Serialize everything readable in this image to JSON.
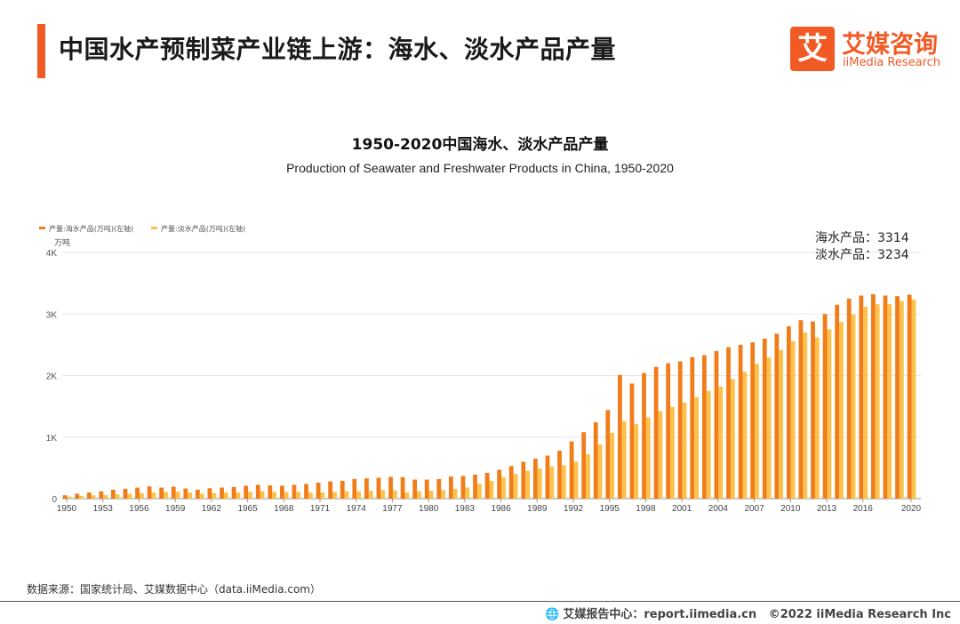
{
  "header": {
    "title": "中国水产预制菜产业链上游：海水、淡水产品产量"
  },
  "brand": {
    "icon_char": "艾",
    "name_cn": "艾媒咨询",
    "name_en": "iiMedia Research"
  },
  "source_text": "数据来源：国家统计局、艾媒数据中心（data.iiMedia.com）",
  "footer": {
    "left_text": "艾媒报告中心：report.iimedia.cn",
    "right_text": "©2022  iiMedia Research  Inc"
  },
  "colors": {
    "accent": "#f15a24",
    "seawater": "#f07d1a",
    "freshwater": "#fcc24c"
  },
  "chart_data": {
    "type": "bar",
    "title": "1950-2020中国海水、淡水产品产量",
    "subtitle": "Production of Seawater and Freshwater Products in China, 1950-2020",
    "ylabel": "万吨",
    "ylim": [
      0,
      4000
    ],
    "yticks": [
      "0",
      "1K",
      "2K",
      "3K",
      "4K"
    ],
    "legend_position": "top-left",
    "grid": true,
    "annotation": [
      "海水产品：3314",
      "淡水产品：3234"
    ],
    "categories": [
      "1950",
      "1951",
      "1952",
      "1953",
      "1954",
      "1955",
      "1956",
      "1957",
      "1958",
      "1959",
      "1960",
      "1961",
      "1962",
      "1963",
      "1964",
      "1965",
      "1966",
      "1967",
      "1968",
      "1969",
      "1970",
      "1971",
      "1972",
      "1973",
      "1974",
      "1975",
      "1976",
      "1977",
      "1978",
      "1979",
      "1980",
      "1981",
      "1982",
      "1983",
      "1984",
      "1985",
      "1986",
      "1987",
      "1988",
      "1989",
      "1990",
      "1991",
      "1992",
      "1993",
      "1994",
      "1995",
      "1996",
      "1997",
      "1998",
      "1999",
      "2000",
      "2001",
      "2002",
      "2003",
      "2004",
      "2005",
      "2006",
      "2007",
      "2008",
      "2009",
      "2010",
      "2011",
      "2012",
      "2013",
      "2014",
      "2015",
      "2016",
      "2017",
      "2018",
      "2019",
      "2020"
    ],
    "xtick_labels": [
      "1950",
      "1953",
      "1956",
      "1959",
      "1962",
      "1965",
      "1968",
      "1971",
      "1974",
      "1977",
      "1980",
      "1983",
      "1986",
      "1989",
      "1992",
      "1995",
      "1998",
      "2001",
      "2004",
      "2007",
      "2010",
      "2013",
      "2016",
      "2020"
    ],
    "series": [
      {
        "name": "产量:海水产品(万吨)(左轴)",
        "values": [
          55,
          80,
          100,
          120,
          145,
          160,
          180,
          200,
          180,
          195,
          165,
          145,
          170,
          180,
          190,
          210,
          225,
          215,
          210,
          225,
          240,
          260,
          280,
          290,
          320,
          330,
          340,
          355,
          350,
          310,
          310,
          320,
          360,
          370,
          390,
          420,
          470,
          530,
          600,
          650,
          700,
          780,
          930,
          1080,
          1240,
          1440,
          2010,
          1870,
          2040,
          2140,
          2200,
          2230,
          2300,
          2330,
          2400,
          2460,
          2500,
          2540,
          2600,
          2680,
          2800,
          2900,
          2880,
          3000,
          3150,
          3250,
          3300,
          3320,
          3300,
          3290,
          3314
        ]
      },
      {
        "name": "产量:淡水产品(万吨)(左轴)",
        "values": [
          35,
          45,
          55,
          60,
          70,
          80,
          90,
          100,
          110,
          115,
          100,
          80,
          90,
          100,
          100,
          110,
          120,
          110,
          105,
          110,
          100,
          100,
          110,
          120,
          120,
          130,
          140,
          135,
          100,
          120,
          130,
          140,
          160,
          180,
          240,
          290,
          350,
          400,
          450,
          490,
          520,
          540,
          600,
          720,
          880,
          1070,
          1260,
          1210,
          1320,
          1420,
          1490,
          1560,
          1650,
          1750,
          1820,
          1940,
          2060,
          2190,
          2290,
          2420,
          2560,
          2700,
          2620,
          2750,
          2870,
          2990,
          3120,
          3160,
          3160,
          3210,
          3234
        ]
      }
    ]
  }
}
